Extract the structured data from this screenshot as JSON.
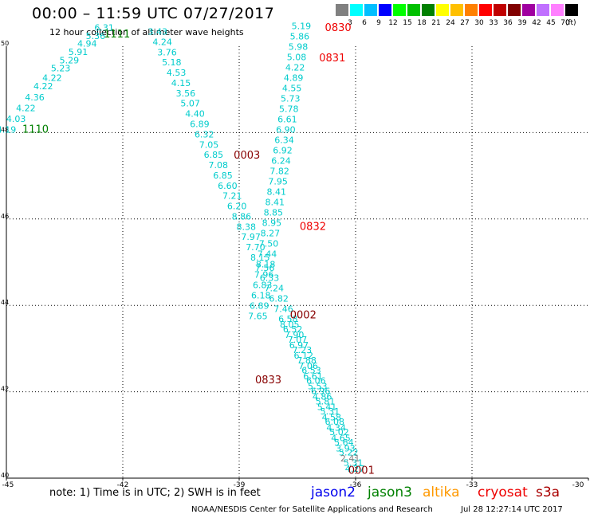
{
  "header": {
    "title": "00:00 – 11:59 UTC 07/27/2017",
    "subtitle": "12 hour collection of altimeter wave heights"
  },
  "colorbar": {
    "colors": [
      "#808080",
      "#00ffff",
      "#00bfff",
      "#0000ff",
      "#00ff00",
      "#00c000",
      "#008000",
      "#ffff00",
      "#ffc000",
      "#ff8000",
      "#ff0000",
      "#c00000",
      "#800000",
      "#a000a0",
      "#c070ff",
      "#ff80ff",
      "#000000"
    ],
    "ticks": [
      "3",
      "6",
      "9",
      "12",
      "15",
      "18",
      "21",
      "24",
      "27",
      "30",
      "33",
      "36",
      "39",
      "42",
      "45",
      "70"
    ],
    "unit": "(ft)"
  },
  "chart_data": {
    "type": "scatter",
    "title": "00:00 – 11:59 UTC 07/27/2017",
    "subtitle": "12 hour collection of altimeter wave heights",
    "xlim": [
      -45,
      -30
    ],
    "ylim": [
      40,
      50
    ],
    "x_ticks": [
      "-45",
      "-42",
      "-39",
      "-36",
      "-33",
      "-30"
    ],
    "y_ticks": [
      "40",
      "42",
      "44",
      "46",
      "48",
      "50"
    ],
    "grid": true,
    "units": "ft",
    "series": [
      {
        "name": "jason3",
        "color": "#00cccc",
        "points": [
          {
            "x": -45.0,
            "y": 48.0,
            "v": "4.19"
          },
          {
            "x": -44.75,
            "y": 48.25,
            "v": "4.03"
          },
          {
            "x": -44.5,
            "y": 48.5,
            "v": "4.22"
          },
          {
            "x": -44.27,
            "y": 48.75,
            "v": "4.36"
          },
          {
            "x": -44.05,
            "y": 49.0,
            "v": "4.22"
          },
          {
            "x": -43.82,
            "y": 49.2,
            "v": "4.22"
          },
          {
            "x": -43.6,
            "y": 49.42,
            "v": "5.23"
          },
          {
            "x": -43.38,
            "y": 49.6,
            "v": "5.29"
          },
          {
            "x": -43.15,
            "y": 49.8,
            "v": "5.91"
          },
          {
            "x": -42.92,
            "y": 49.99,
            "v": "4.94"
          },
          {
            "x": -42.7,
            "y": 50.17,
            "v": "5.36"
          },
          {
            "x": -42.48,
            "y": 50.36,
            "v": "6.31"
          }
        ],
        "labels": [
          {
            "text": "1110",
            "x": -44.25,
            "y": 48.0
          },
          {
            "text": "1111",
            "x": -42.15,
            "y": 50.2
          }
        ]
      },
      {
        "name": "cryosat",
        "color": "#00cccc",
        "points": [
          {
            "x": -41.1,
            "y": 50.27,
            "v": "3.43"
          },
          {
            "x": -40.98,
            "y": 50.03,
            "v": "4.24"
          },
          {
            "x": -40.86,
            "y": 49.79,
            "v": "3.76"
          },
          {
            "x": -40.74,
            "y": 49.56,
            "v": "5.18"
          },
          {
            "x": -40.62,
            "y": 49.32,
            "v": "4.53"
          },
          {
            "x": -40.5,
            "y": 49.08,
            "v": "4.15"
          },
          {
            "x": -40.38,
            "y": 48.84,
            "v": "3.56"
          },
          {
            "x": -40.26,
            "y": 48.61,
            "v": "5.07"
          },
          {
            "x": -40.14,
            "y": 48.37,
            "v": "4.40"
          },
          {
            "x": -40.02,
            "y": 48.13,
            "v": "6.89"
          },
          {
            "x": -39.9,
            "y": 47.89,
            "v": "6.32"
          },
          {
            "x": -39.78,
            "y": 47.65,
            "v": "7.05"
          },
          {
            "x": -39.66,
            "y": 47.42,
            "v": "6.85"
          },
          {
            "x": -39.54,
            "y": 47.18,
            "v": "7.08"
          },
          {
            "x": -39.42,
            "y": 46.94,
            "v": "6.85"
          },
          {
            "x": -39.3,
            "y": 46.7,
            "v": "6.60"
          },
          {
            "x": -39.18,
            "y": 46.47,
            "v": "7.21"
          },
          {
            "x": -39.06,
            "y": 46.23,
            "v": "6.20"
          },
          {
            "x": -38.94,
            "y": 45.99,
            "v": "8.86"
          },
          {
            "x": -38.82,
            "y": 45.75,
            "v": "8.38"
          },
          {
            "x": -38.7,
            "y": 45.52,
            "v": "7.97"
          },
          {
            "x": -38.58,
            "y": 45.28,
            "v": "7.70"
          },
          {
            "x": -38.46,
            "y": 45.04,
            "v": "8.15"
          },
          {
            "x": -38.34,
            "y": 44.8,
            "v": "7.56"
          },
          {
            "x": -38.22,
            "y": 44.57,
            "v": "6.33"
          },
          {
            "x": -38.1,
            "y": 44.33,
            "v": "7.24"
          },
          {
            "x": -37.98,
            "y": 44.09,
            "v": "6.82"
          },
          {
            "x": -37.86,
            "y": 43.85,
            "v": "7.46"
          },
          {
            "x": -37.74,
            "y": 43.62,
            "v": "6.58"
          },
          {
            "x": -37.62,
            "y": 43.38,
            "v": "6.52"
          },
          {
            "x": -37.5,
            "y": 43.14,
            "v": "7.07"
          },
          {
            "x": -37.38,
            "y": 42.9,
            "v": "7.23"
          },
          {
            "x": -37.26,
            "y": 42.66,
            "v": "7.88"
          },
          {
            "x": -37.14,
            "y": 42.43,
            "v": "6.53"
          },
          {
            "x": -37.02,
            "y": 42.19,
            "v": "6.06"
          },
          {
            "x": -36.9,
            "y": 41.95,
            "v": "6.96"
          },
          {
            "x": -36.78,
            "y": 41.71,
            "v": "5.81"
          },
          {
            "x": -36.66,
            "y": 41.48,
            "v": "5.31"
          },
          {
            "x": -36.54,
            "y": 41.24,
            "v": "6.08"
          },
          {
            "x": -36.42,
            "y": 41.0,
            "v": "5.02"
          },
          {
            "x": -36.3,
            "y": 40.76,
            "v": "5.64"
          },
          {
            "x": -36.18,
            "y": 40.53,
            "v": "5.22"
          },
          {
            "x": -36.06,
            "y": 40.29,
            "v": "5.31"
          }
        ],
        "labels": [
          {
            "text": "0003",
            "x": -38.8,
            "y": 47.4
          }
        ]
      },
      {
        "name": "s3a",
        "color": "#00cccc",
        "points": [
          {
            "x": -37.4,
            "y": 50.4,
            "v": "5.19"
          },
          {
            "x": -37.44,
            "y": 50.16,
            "v": "5.86"
          },
          {
            "x": -37.48,
            "y": 49.92,
            "v": "5.98"
          },
          {
            "x": -37.52,
            "y": 49.68,
            "v": "5.08"
          },
          {
            "x": -37.56,
            "y": 49.44,
            "v": "4.22"
          },
          {
            "x": -37.6,
            "y": 49.2,
            "v": "4.89"
          },
          {
            "x": -37.64,
            "y": 48.96,
            "v": "4.55"
          },
          {
            "x": -37.68,
            "y": 48.72,
            "v": "5.73"
          },
          {
            "x": -37.72,
            "y": 48.48,
            "v": "5.78"
          },
          {
            "x": -37.76,
            "y": 48.24,
            "v": "6.61"
          },
          {
            "x": -37.8,
            "y": 48.0,
            "v": "6.90"
          },
          {
            "x": -37.84,
            "y": 47.76,
            "v": "6.34"
          },
          {
            "x": -37.88,
            "y": 47.52,
            "v": "6.92"
          },
          {
            "x": -37.92,
            "y": 47.28,
            "v": "6.24"
          },
          {
            "x": -37.96,
            "y": 47.04,
            "v": "7.82"
          },
          {
            "x": -38.0,
            "y": 46.8,
            "v": "7.95"
          },
          {
            "x": -38.04,
            "y": 46.56,
            "v": "8.41"
          },
          {
            "x": -38.08,
            "y": 46.32,
            "v": "8.41"
          },
          {
            "x": -38.12,
            "y": 46.08,
            "v": "8.85"
          },
          {
            "x": -38.16,
            "y": 45.84,
            "v": "8.95"
          },
          {
            "x": -38.2,
            "y": 45.6,
            "v": "8.27"
          },
          {
            "x": -38.24,
            "y": 45.36,
            "v": "7.50"
          },
          {
            "x": -38.28,
            "y": 45.12,
            "v": "7.44"
          },
          {
            "x": -38.32,
            "y": 44.88,
            "v": "8.18"
          },
          {
            "x": -38.36,
            "y": 44.64,
            "v": "7.96"
          },
          {
            "x": -38.4,
            "y": 44.4,
            "v": "6.83"
          },
          {
            "x": -38.44,
            "y": 44.16,
            "v": "6.18"
          },
          {
            "x": -38.48,
            "y": 43.92,
            "v": "6.89"
          },
          {
            "x": -38.52,
            "y": 43.68,
            "v": "7.65"
          }
        ],
        "labels": [
          {
            "text": "0830",
            "x": -36.45,
            "y": 50.35
          },
          {
            "text": "0831",
            "x": -36.6,
            "y": 49.65
          },
          {
            "text": "0832",
            "x": -37.1,
            "y": 45.75
          }
        ]
      },
      {
        "name": "altika",
        "color": "#00cccc",
        "points": [
          {
            "x": -37.7,
            "y": 43.49,
            "v": "8.05"
          },
          {
            "x": -37.58,
            "y": 43.25,
            "v": "7.90"
          },
          {
            "x": -37.46,
            "y": 43.01,
            "v": "6.97"
          },
          {
            "x": -37.34,
            "y": 42.77,
            "v": "6.12"
          },
          {
            "x": -37.22,
            "y": 42.53,
            "v": "7.06"
          },
          {
            "x": -37.1,
            "y": 42.29,
            "v": "6.61"
          },
          {
            "x": -36.98,
            "y": 42.06,
            "v": "5.53"
          },
          {
            "x": -36.86,
            "y": 41.82,
            "v": "4.86"
          },
          {
            "x": -36.74,
            "y": 41.58,
            "v": "5.41"
          },
          {
            "x": -36.62,
            "y": 41.34,
            "v": "4.58"
          },
          {
            "x": -36.5,
            "y": 41.1,
            "v": "4.34"
          },
          {
            "x": -36.38,
            "y": 40.86,
            "v": "4.65"
          },
          {
            "x": -36.26,
            "y": 40.62,
            "v": "3.93"
          },
          {
            "x": -36.14,
            "y": 40.39,
            "v": "2.41",
            "color": "#808080"
          },
          {
            "x": -36.02,
            "y": 40.15,
            "v": "4.27"
          }
        ],
        "labels": [
          {
            "text": "0002",
            "x": -37.35,
            "y": 43.7
          },
          {
            "text": "0833",
            "x": -38.25,
            "y": 42.2
          },
          {
            "text": "0001",
            "x": -35.85,
            "y": 40.1
          }
        ]
      }
    ]
  },
  "footer": {
    "note": "note: 1) Time is in UTC; 2) SWH is in feet",
    "credit": "NOAA/NESDIS Center for Satellite Applications and Research",
    "timestamp": "Jul 28 12:27:14 UTC 2017",
    "legend": [
      {
        "name": "jason2",
        "color": "#0000ee"
      },
      {
        "name": "jason3",
        "color": "#008000"
      },
      {
        "name": "altika",
        "color": "#ff9900"
      },
      {
        "name": "cryosat",
        "color": "#ee0000"
      },
      {
        "name": "s3a",
        "color": "#aa0000"
      }
    ]
  },
  "label_colors": {
    "jason3": "#008000",
    "cryosat": "#880000",
    "s3a": "#ee0000",
    "altika": "#880000"
  }
}
